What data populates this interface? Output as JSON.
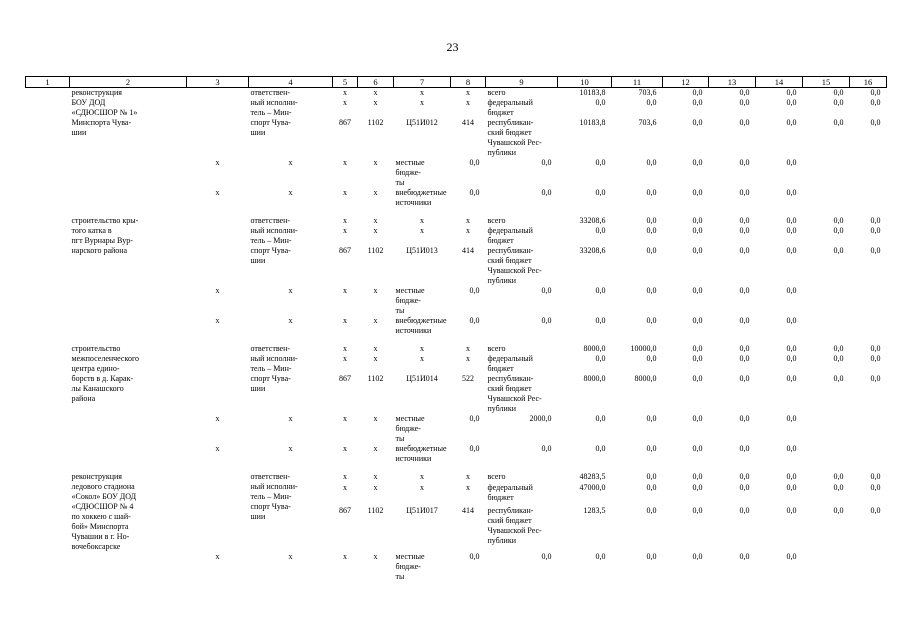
{
  "page_number": "23",
  "headers": [
    "1",
    "2",
    "3",
    "4",
    "5",
    "6",
    "7",
    "8",
    "9",
    "10",
    "11",
    "12",
    "13",
    "14",
    "15",
    "16"
  ],
  "zeros": "0,0",
  "xmark": "x",
  "blocks": [
    {
      "name": [
        "реконструкция",
        "БОУ ДОД",
        "«СДЮСШОР № 1»",
        "Минспорта Чува-",
        "шии"
      ],
      "executor": [
        "ответствен-",
        "ный исполни-",
        "тель – Мин-",
        "спорт Чува-",
        "шии"
      ],
      "gr": "867",
      "rz": "1102",
      "csr": "Ц51И012",
      "vr": "414",
      "src": [
        {
          "lines": [
            "всего"
          ],
          "c10": "10183,8",
          "c11": "703,6"
        },
        {
          "lines": [
            "федеральный",
            "бюджет"
          ],
          "c10": "0,0",
          "c11": "0,0"
        },
        {
          "lines": [
            "республикан-",
            "ский бюджет",
            "Чувашской Рес-",
            "публики"
          ],
          "c10": "10183,8",
          "c11": "703,6"
        },
        {
          "lines": [
            "местные бюдже-",
            "ты"
          ],
          "c10": "0,0",
          "c11": "0,0"
        },
        {
          "lines": [
            "внебюджетные",
            "источники"
          ],
          "c10": "0,0",
          "c11": "0,0"
        }
      ]
    },
    {
      "name": [
        "строительство кры-",
        "того катка в",
        "пгт Вурнары Вур-",
        "нарского района"
      ],
      "executor": [
        "ответствен-",
        "ный исполни-",
        "тель – Мин-",
        "спорт Чува-",
        "шии"
      ],
      "gr": "867",
      "rz": "1102",
      "csr": "Ц51И013",
      "vr": "414",
      "src": [
        {
          "lines": [
            "всего"
          ],
          "c10": "33208,6",
          "c11": "0,0"
        },
        {
          "lines": [
            "федеральный",
            "бюджет"
          ],
          "c10": "0,0",
          "c11": "0,0"
        },
        {
          "lines": [
            "республикан-",
            "ский бюджет",
            "Чувашской Рес-",
            "публики"
          ],
          "c10": "33208,6",
          "c11": "0,0"
        },
        {
          "lines": [
            "местные бюдже-",
            "ты"
          ],
          "c10": "0,0",
          "c11": "0,0"
        },
        {
          "lines": [
            "внебюджетные",
            "источники"
          ],
          "c10": "0,0",
          "c11": "0,0"
        }
      ]
    },
    {
      "name": [
        "строительство",
        "межпоселенческого",
        "центра едино-",
        "борств в д. Карак-",
        "лы Канашского",
        "района"
      ],
      "executor": [
        "ответствен-",
        "ный исполни-",
        "тель – Мин-",
        "спорт Чува-",
        "шии"
      ],
      "gr": "867",
      "rz": "1102",
      "csr": "Ц51И014",
      "vr": "522",
      "src": [
        {
          "lines": [
            "всего"
          ],
          "c10": "8000,0",
          "c11": "10000,0"
        },
        {
          "lines": [
            "федеральный",
            "бюджет"
          ],
          "c10": "0,0",
          "c11": "0,0"
        },
        {
          "lines": [
            "республикан-",
            "ский бюджет",
            "Чувашской Рес-",
            "публики"
          ],
          "c10": "8000,0",
          "c11": "8000,0"
        },
        {
          "lines": [
            "местные бюдже-",
            "ты"
          ],
          "c10": "0,0",
          "c11": "2000,0"
        },
        {
          "lines": [
            "внебюджетные",
            "источники"
          ],
          "c10": "0,0",
          "c11": "0,0"
        }
      ]
    },
    {
      "name": [
        "реконструкция",
        "ледового стадиона",
        "«Сокол» БОУ ДОД",
        "«СДЮСШОР № 4",
        "по хоккею с шай-",
        "бой» Минспорта",
        "Чувашии в г. Но-",
        "вочебоксарске"
      ],
      "executor": [
        "ответствен-",
        "ный исполни-",
        "тель – Мин-",
        "спорт Чува-",
        "шии"
      ],
      "gr": "867",
      "rz": "1102",
      "csr": "Ц51И017",
      "vr": "414",
      "src": [
        {
          "lines": [
            "всего"
          ],
          "c10": "48283,5",
          "c11": "0,0"
        },
        {
          "lines": [
            "федеральный",
            "бюджет"
          ],
          "c10": "47000,0",
          "c11": "0,0"
        },
        {
          "lines": [
            "республикан-",
            "ский бюджет",
            "Чувашской Рес-",
            "публики"
          ],
          "c10": "1283,5",
          "c11": "0,0"
        },
        {
          "lines": [
            "местные бюдже-",
            "ты"
          ],
          "c10": "0,0",
          "c11": "0,0"
        }
      ]
    }
  ]
}
